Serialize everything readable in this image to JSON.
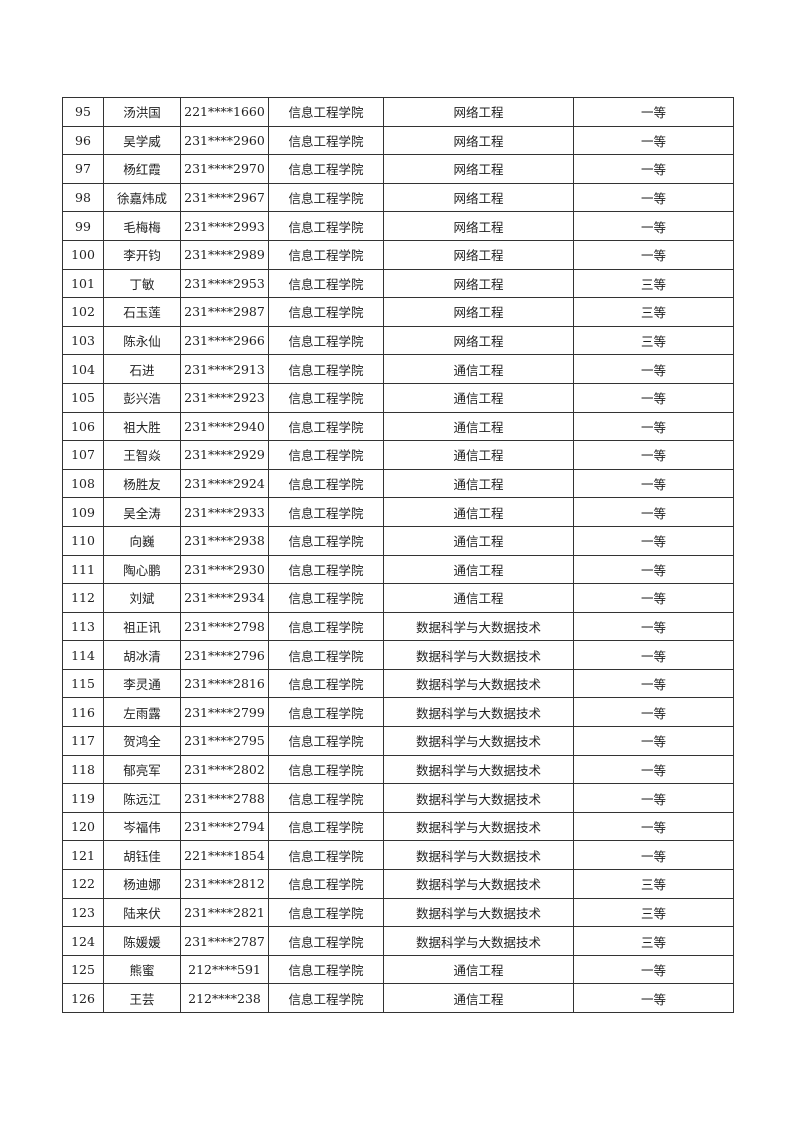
{
  "table": {
    "rows": [
      [
        "95",
        "汤洪国",
        "221****1660",
        "信息工程学院",
        "网络工程",
        "一等"
      ],
      [
        "96",
        "吴学威",
        "231****2960",
        "信息工程学院",
        "网络工程",
        "一等"
      ],
      [
        "97",
        "杨红霞",
        "231****2970",
        "信息工程学院",
        "网络工程",
        "一等"
      ],
      [
        "98",
        "徐嘉炜成",
        "231****2967",
        "信息工程学院",
        "网络工程",
        "一等"
      ],
      [
        "99",
        "毛梅梅",
        "231****2993",
        "信息工程学院",
        "网络工程",
        "一等"
      ],
      [
        "100",
        "李开钧",
        "231****2989",
        "信息工程学院",
        "网络工程",
        "一等"
      ],
      [
        "101",
        "丁敏",
        "231****2953",
        "信息工程学院",
        "网络工程",
        "三等"
      ],
      [
        "102",
        "石玉莲",
        "231****2987",
        "信息工程学院",
        "网络工程",
        "三等"
      ],
      [
        "103",
        "陈永仙",
        "231****2966",
        "信息工程学院",
        "网络工程",
        "三等"
      ],
      [
        "104",
        "石进",
        "231****2913",
        "信息工程学院",
        "通信工程",
        "一等"
      ],
      [
        "105",
        "彭兴浩",
        "231****2923",
        "信息工程学院",
        "通信工程",
        "一等"
      ],
      [
        "106",
        "祖大胜",
        "231****2940",
        "信息工程学院",
        "通信工程",
        "一等"
      ],
      [
        "107",
        "王智焱",
        "231****2929",
        "信息工程学院",
        "通信工程",
        "一等"
      ],
      [
        "108",
        "杨胜友",
        "231****2924",
        "信息工程学院",
        "通信工程",
        "一等"
      ],
      [
        "109",
        "吴全涛",
        "231****2933",
        "信息工程学院",
        "通信工程",
        "一等"
      ],
      [
        "110",
        "向巍",
        "231****2938",
        "信息工程学院",
        "通信工程",
        "一等"
      ],
      [
        "111",
        "陶心鹏",
        "231****2930",
        "信息工程学院",
        "通信工程",
        "一等"
      ],
      [
        "112",
        "刘斌",
        "231****2934",
        "信息工程学院",
        "通信工程",
        "一等"
      ],
      [
        "113",
        "祖正讯",
        "231****2798",
        "信息工程学院",
        "数据科学与大数据技术",
        "一等"
      ],
      [
        "114",
        "胡冰清",
        "231****2796",
        "信息工程学院",
        "数据科学与大数据技术",
        "一等"
      ],
      [
        "115",
        "李灵通",
        "231****2816",
        "信息工程学院",
        "数据科学与大数据技术",
        "一等"
      ],
      [
        "116",
        "左雨露",
        "231****2799",
        "信息工程学院",
        "数据科学与大数据技术",
        "一等"
      ],
      [
        "117",
        "贺鸿全",
        "231****2795",
        "信息工程学院",
        "数据科学与大数据技术",
        "一等"
      ],
      [
        "118",
        "郁亮军",
        "231****2802",
        "信息工程学院",
        "数据科学与大数据技术",
        "一等"
      ],
      [
        "119",
        "陈远江",
        "231****2788",
        "信息工程学院",
        "数据科学与大数据技术",
        "一等"
      ],
      [
        "120",
        "岑福伟",
        "231****2794",
        "信息工程学院",
        "数据科学与大数据技术",
        "一等"
      ],
      [
        "121",
        "胡钰佳",
        "221****1854",
        "信息工程学院",
        "数据科学与大数据技术",
        "一等"
      ],
      [
        "122",
        "杨迪娜",
        "231****2812",
        "信息工程学院",
        "数据科学与大数据技术",
        "三等"
      ],
      [
        "123",
        "陆来伏",
        "231****2821",
        "信息工程学院",
        "数据科学与大数据技术",
        "三等"
      ],
      [
        "124",
        "陈媛媛",
        "231****2787",
        "信息工程学院",
        "数据科学与大数据技术",
        "三等"
      ],
      [
        "125",
        "熊蜜",
        "212****591",
        "信息工程学院",
        "通信工程",
        "一等"
      ],
      [
        "126",
        "王芸",
        "212****238",
        "信息工程学院",
        "通信工程",
        "一等"
      ]
    ]
  }
}
